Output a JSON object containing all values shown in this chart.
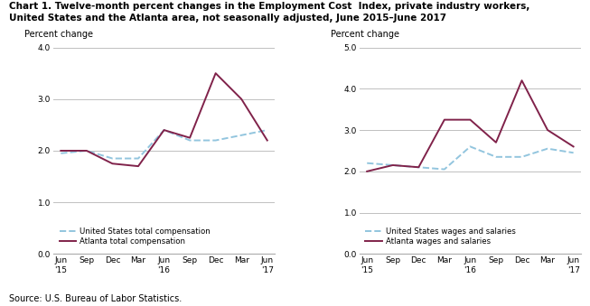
{
  "title_line1": "Chart 1. Twelve-month percent changes in the Employment Cost  Index, private industry workers,",
  "title_line2": "United States and the Atlanta area, not seasonally adjusted, June 2015–June 2017",
  "source": "Source: U.S. Bureau of Labor Statistics.",
  "x_labels": [
    "Jun\n'15",
    "Sep",
    "Dec",
    "Mar",
    "Jun\n'16",
    "Sep",
    "Dec",
    "Mar",
    "Jun\n'17"
  ],
  "x_positions": [
    0,
    1,
    2,
    3,
    4,
    5,
    6,
    7,
    8
  ],
  "chart1": {
    "ylabel": "Percent change",
    "ylim": [
      0.0,
      4.0
    ],
    "yticks": [
      0.0,
      1.0,
      2.0,
      3.0,
      4.0
    ],
    "us_total_comp": [
      1.95,
      2.0,
      1.85,
      1.85,
      2.4,
      2.2,
      2.2,
      2.3,
      2.4
    ],
    "atlanta_total_comp": [
      2.0,
      2.0,
      1.75,
      1.7,
      2.4,
      2.25,
      3.5,
      3.0,
      2.2
    ],
    "us_color": "#92c5de",
    "atlanta_color": "#80224a",
    "legend_us": "United States total compensation",
    "legend_atlanta": "Atlanta total compensation"
  },
  "chart2": {
    "ylabel": "Percent change",
    "ylim": [
      0.0,
      5.0
    ],
    "yticks": [
      0.0,
      1.0,
      2.0,
      3.0,
      4.0,
      5.0
    ],
    "us_wages": [
      2.2,
      2.15,
      2.1,
      2.05,
      2.6,
      2.35,
      2.35,
      2.55,
      2.45
    ],
    "atlanta_wages": [
      2.0,
      2.15,
      2.1,
      3.25,
      3.25,
      2.7,
      4.2,
      3.0,
      2.6
    ],
    "us_color": "#92c5de",
    "atlanta_color": "#80224a",
    "legend_us": "United States wages and salaries",
    "legend_atlanta": "Atlanta wages and salaries"
  }
}
